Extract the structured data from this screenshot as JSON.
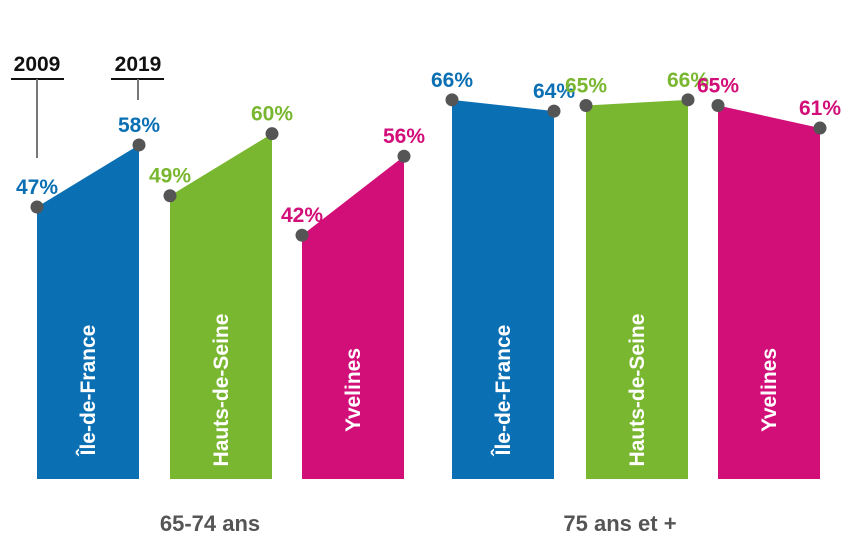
{
  "chart_data": {
    "type": "slope-bar",
    "unit": "%",
    "years": [
      "2009",
      "2019"
    ],
    "colors": {
      "Île-de-France": "#0b6fb4",
      "Hauts-de-Seine": "#7ab730",
      "Yvelines": "#d20f79",
      "marker": "#555555"
    },
    "groups": [
      {
        "label": "65-74 ans",
        "series": [
          {
            "name": "Île-de-France",
            "values": [
              47,
              58
            ],
            "labels": [
              "47%",
              "58%"
            ]
          },
          {
            "name": "Hauts-de-Seine",
            "values": [
              49,
              60
            ],
            "labels": [
              "49%",
              "60%"
            ]
          },
          {
            "name": "Yvelines",
            "values": [
              42,
              56
            ],
            "labels": [
              "42%",
              "56%"
            ]
          }
        ]
      },
      {
        "label": "75 ans et +",
        "series": [
          {
            "name": "Île-de-France",
            "values": [
              66,
              64
            ],
            "labels": [
              "66%",
              "64%"
            ]
          },
          {
            "name": "Hauts-de-Seine",
            "values": [
              65,
              66
            ],
            "labels": [
              "65%",
              "66%"
            ]
          },
          {
            "name": "Yvelines",
            "values": [
              65,
              61
            ],
            "labels": [
              "65%",
              "61%"
            ]
          }
        ]
      }
    ]
  }
}
